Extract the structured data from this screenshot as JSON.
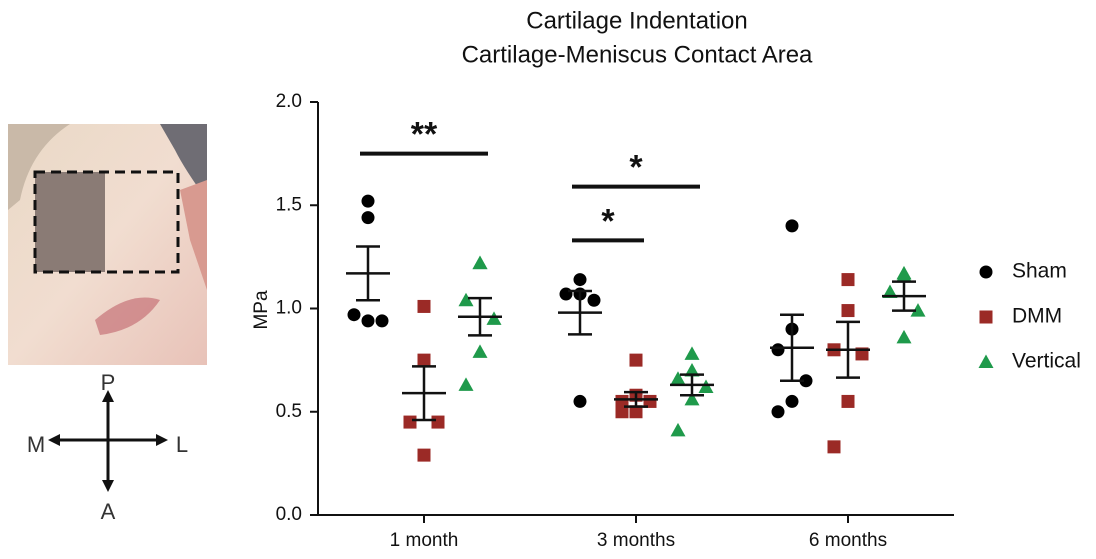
{
  "chart_data": {
    "type": "dot",
    "title": "Cartilage Indentation",
    "subtitle": "Cartilage-Meniscus Contact Area",
    "y_label": "MPa",
    "categories": [
      "1 month",
      "3 months",
      "6 months"
    ],
    "ylim": [
      0,
      2.0
    ],
    "yticks": [
      {
        "value": 0,
        "label": "0.0"
      },
      0.5,
      {
        "value": 1.0,
        "label": "1.0"
      },
      1.5,
      {
        "value": 2.0,
        "label": "2.0"
      }
    ],
    "series": [
      {
        "name": "Sham",
        "color": "#000000",
        "marker": "circle",
        "values": [
          [
            1.52,
            1.44,
            0.97,
            0.94,
            0.94
          ],
          [
            1.14,
            1.07,
            1.07,
            1.04,
            0.55
          ],
          [
            1.4,
            0.9,
            0.8,
            0.65,
            0.55,
            0.5
          ]
        ],
        "mean": [
          1.17,
          0.98,
          0.81
        ],
        "sem": [
          0.13,
          0.105,
          0.16
        ]
      },
      {
        "name": "DMM",
        "color": "#9b2a26",
        "marker": "square",
        "values": [
          [
            1.01,
            0.75,
            0.45,
            0.45,
            0.29
          ],
          [
            0.75,
            0.58,
            0.55,
            0.55,
            0.5,
            0.5
          ],
          [
            1.14,
            0.99,
            0.8,
            0.78,
            0.55,
            0.33
          ]
        ],
        "mean": [
          0.59,
          0.56,
          0.8
        ],
        "sem": [
          0.13,
          0.035,
          0.135
        ]
      },
      {
        "name": "Vertical",
        "color": "#1f9a4b",
        "marker": "triangle",
        "values": [
          [
            1.22,
            1.22,
            1.04,
            0.95,
            0.79,
            0.63
          ],
          [
            0.78,
            0.7,
            0.66,
            0.62,
            0.56,
            0.41
          ],
          [
            1.17,
            1.16,
            1.08,
            0.99,
            0.86
          ]
        ],
        "mean": [
          0.96,
          0.63,
          1.06
        ],
        "sem": [
          0.09,
          0.05,
          0.07
        ]
      }
    ],
    "annotations": [
      {
        "text": "**",
        "category": 0,
        "from": 0,
        "to": 2,
        "y": 1.75
      },
      {
        "text": "*",
        "category": 1,
        "from": 0,
        "to": 2,
        "y": 1.59
      },
      {
        "text": "*",
        "category": 1,
        "from": 0,
        "to": 1,
        "y": 1.33
      }
    ]
  },
  "orientation": {
    "top": "P",
    "bottom": "A",
    "left": "M",
    "right": "L"
  }
}
